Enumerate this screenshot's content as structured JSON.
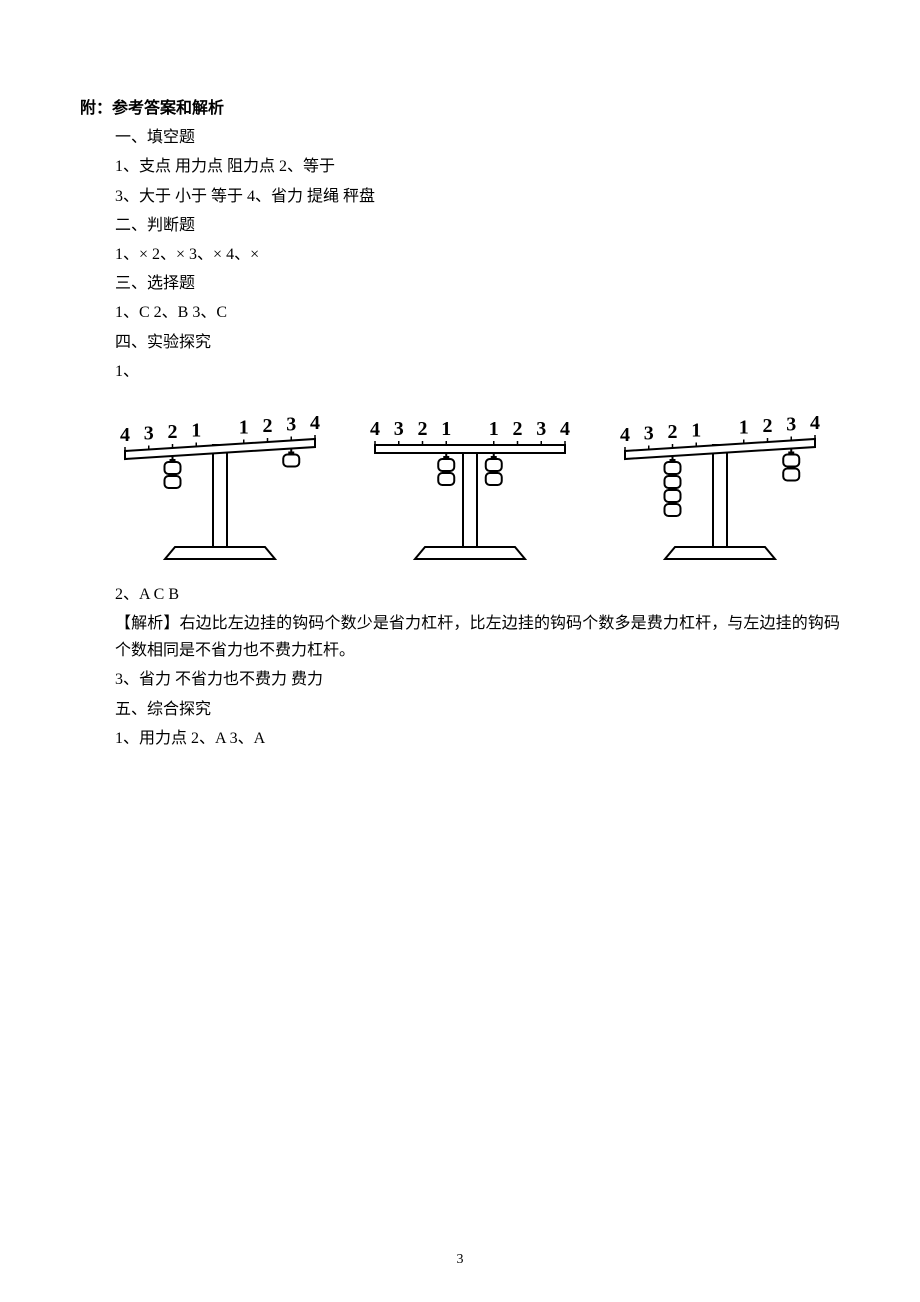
{
  "heading": "附：参考答案和解析",
  "sec1": {
    "title": "一、填空题",
    "l1": "1、支点   用力点   阻力点     2、等于",
    "l2": "3、大于   小于   等于     4、省力   提绳   秤盘"
  },
  "sec2": {
    "title": "二、判断题",
    "l1": "1、×    2、×    3、×    4、×"
  },
  "sec3": {
    "title": "三、选择题",
    "l1": "1、C    2、B    3、C"
  },
  "sec4": {
    "title": "四、实验探究",
    "label1": "1、",
    "q2": "2、A   C   B",
    "explain": "【解析】右边比左边挂的钩码个数少是省力杠杆，比左边挂的钩码个数多是费力杠杆，与左边挂的钩码个数相同是不省力也不费力杠杆。",
    "q3": "3、省力   不省力也不费力   费力"
  },
  "sec5": {
    "title": "五、综合探究",
    "l1": "1、用力点     2、A     3、A"
  },
  "pageNumber": "3",
  "diagrams": {
    "unit_width": 260,
    "unit_height": 160,
    "beam_color": "#000",
    "weight_color": "#666",
    "levers": [
      {
        "left_weights_pos": 2,
        "left_weights_count": 2,
        "left_tilt": 6,
        "right_weights_pos": 3,
        "right_weights_count": 1
      },
      {
        "left_weights_pos": 1,
        "left_weights_count": 2,
        "left_tilt": 0,
        "right_weights_pos": 1,
        "right_weights_count": 2
      },
      {
        "left_weights_pos": 2,
        "left_weights_count": 4,
        "left_tilt": 6,
        "right_weights_pos": 3,
        "right_weights_count": 2
      }
    ],
    "scale_labels": [
      "4",
      "3",
      "2",
      "1",
      "1",
      "2",
      "3",
      "4"
    ]
  }
}
